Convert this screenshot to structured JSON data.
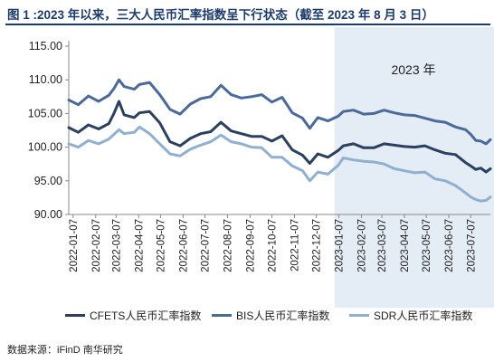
{
  "header": {
    "title": "图 1 :2023 年以来，三大人民币汇率指数呈下行状态（截至 2023 年 8 月 3 日）"
  },
  "footer": {
    "source": "数据来源：iFinD  南华研究"
  },
  "colors": {
    "cfets": "#2b3f5f",
    "bis": "#4a6a9a",
    "sdr": "#8fb0d0",
    "highlight": "#e4ecf6",
    "title": "#1c3a6b"
  },
  "chart_data": {
    "type": "line",
    "title": "",
    "xlabel": "",
    "ylabel": "",
    "ylim": [
      90,
      115
    ],
    "yticks": [
      "90.00",
      "95.00",
      "100.00",
      "105.00",
      "110.00",
      "115.00"
    ],
    "xticks": [
      "2022-01-07",
      "2022-02-07",
      "2022-03-07",
      "2022-04-07",
      "2022-05-07",
      "2022-06-07",
      "2022-07-07",
      "2022-08-07",
      "2022-09-07",
      "2022-10-07",
      "2022-11-07",
      "2022-12-07",
      "2023-01-07",
      "2023-02-07",
      "2023-03-07",
      "2023-04-07",
      "2023-05-07",
      "2023-06-07",
      "2023-07-07"
    ],
    "x_range": [
      "2022-01-01",
      "2023-08-03"
    ],
    "legend_position": "bottom",
    "grid": false,
    "annotation": {
      "text": "2023 年",
      "shaded_from": "2023-01-01",
      "shaded_to": "2023-08-03"
    },
    "series": [
      {
        "name": "CFETS人民币汇率指数",
        "color": "#2b3f5f",
        "points": [
          [
            "2022-01-01",
            102.9
          ],
          [
            "2022-01-14",
            102.2
          ],
          [
            "2022-01-28",
            103.3
          ],
          [
            "2022-02-11",
            102.7
          ],
          [
            "2022-02-25",
            103.5
          ],
          [
            "2022-03-04",
            105.0
          ],
          [
            "2022-03-11",
            106.8
          ],
          [
            "2022-03-18",
            104.8
          ],
          [
            "2022-04-01",
            104.4
          ],
          [
            "2022-04-08",
            105.1
          ],
          [
            "2022-04-22",
            105.3
          ],
          [
            "2022-05-06",
            103.6
          ],
          [
            "2022-05-20",
            100.8
          ],
          [
            "2022-06-03",
            100.2
          ],
          [
            "2022-06-17",
            101.3
          ],
          [
            "2022-07-01",
            102.0
          ],
          [
            "2022-07-15",
            102.3
          ],
          [
            "2022-07-29",
            103.7
          ],
          [
            "2022-08-12",
            102.4
          ],
          [
            "2022-08-26",
            102.0
          ],
          [
            "2022-09-09",
            101.6
          ],
          [
            "2022-09-23",
            101.6
          ],
          [
            "2022-10-07",
            100.9
          ],
          [
            "2022-10-21",
            101.7
          ],
          [
            "2022-11-04",
            99.6
          ],
          [
            "2022-11-18",
            98.8
          ],
          [
            "2022-11-28",
            97.6
          ],
          [
            "2022-12-09",
            99.0
          ],
          [
            "2022-12-23",
            98.5
          ],
          [
            "2023-01-06",
            99.5
          ],
          [
            "2023-01-13",
            100.2
          ],
          [
            "2023-01-27",
            100.5
          ],
          [
            "2023-02-10",
            99.9
          ],
          [
            "2023-02-24",
            99.9
          ],
          [
            "2023-03-10",
            100.5
          ],
          [
            "2023-03-24",
            100.3
          ],
          [
            "2023-04-07",
            100.1
          ],
          [
            "2023-04-21",
            100.0
          ],
          [
            "2023-05-05",
            100.2
          ],
          [
            "2023-05-19",
            99.6
          ],
          [
            "2023-06-02",
            99.1
          ],
          [
            "2023-06-16",
            98.9
          ],
          [
            "2023-06-30",
            97.7
          ],
          [
            "2023-07-07",
            97.2
          ],
          [
            "2023-07-14",
            96.7
          ],
          [
            "2023-07-21",
            96.9
          ],
          [
            "2023-07-28",
            96.3
          ],
          [
            "2023-08-03",
            96.8
          ]
        ]
      },
      {
        "name": "BIS人民币汇率指数",
        "color": "#4a6a9a",
        "points": [
          [
            "2022-01-01",
            107.0
          ],
          [
            "2022-01-14",
            106.3
          ],
          [
            "2022-01-28",
            107.6
          ],
          [
            "2022-02-11",
            106.8
          ],
          [
            "2022-02-25",
            107.7
          ],
          [
            "2022-03-04",
            108.7
          ],
          [
            "2022-03-11",
            110.0
          ],
          [
            "2022-03-18",
            109.0
          ],
          [
            "2022-04-01",
            108.6
          ],
          [
            "2022-04-08",
            109.3
          ],
          [
            "2022-04-22",
            109.6
          ],
          [
            "2022-05-06",
            107.8
          ],
          [
            "2022-05-20",
            105.6
          ],
          [
            "2022-06-03",
            104.9
          ],
          [
            "2022-06-17",
            106.4
          ],
          [
            "2022-07-01",
            107.2
          ],
          [
            "2022-07-15",
            107.5
          ],
          [
            "2022-07-29",
            109.2
          ],
          [
            "2022-08-12",
            107.8
          ],
          [
            "2022-08-26",
            107.3
          ],
          [
            "2022-09-09",
            107.5
          ],
          [
            "2022-09-23",
            107.8
          ],
          [
            "2022-10-07",
            106.7
          ],
          [
            "2022-10-21",
            107.4
          ],
          [
            "2022-11-04",
            105.1
          ],
          [
            "2022-11-18",
            104.3
          ],
          [
            "2022-11-28",
            102.8
          ],
          [
            "2022-12-09",
            104.4
          ],
          [
            "2022-12-23",
            103.9
          ],
          [
            "2023-01-06",
            104.6
          ],
          [
            "2023-01-13",
            105.3
          ],
          [
            "2023-01-27",
            105.5
          ],
          [
            "2023-02-10",
            104.9
          ],
          [
            "2023-02-24",
            105.0
          ],
          [
            "2023-03-10",
            105.5
          ],
          [
            "2023-03-24",
            105.1
          ],
          [
            "2023-04-07",
            104.8
          ],
          [
            "2023-04-21",
            104.7
          ],
          [
            "2023-05-05",
            104.3
          ],
          [
            "2023-05-19",
            103.9
          ],
          [
            "2023-06-02",
            103.7
          ],
          [
            "2023-06-16",
            103.0
          ],
          [
            "2023-06-30",
            102.6
          ],
          [
            "2023-07-07",
            101.9
          ],
          [
            "2023-07-14",
            101.0
          ],
          [
            "2023-07-21",
            100.9
          ],
          [
            "2023-07-28",
            100.5
          ],
          [
            "2023-08-03",
            101.1
          ]
        ]
      },
      {
        "name": "SDR人民币汇率指数",
        "color": "#8fb0d0",
        "points": [
          [
            "2022-01-01",
            100.5
          ],
          [
            "2022-01-14",
            100.0
          ],
          [
            "2022-01-28",
            101.0
          ],
          [
            "2022-02-11",
            100.5
          ],
          [
            "2022-02-25",
            101.2
          ],
          [
            "2022-03-04",
            101.9
          ],
          [
            "2022-03-11",
            102.6
          ],
          [
            "2022-03-18",
            102.0
          ],
          [
            "2022-04-01",
            102.2
          ],
          [
            "2022-04-08",
            103.0
          ],
          [
            "2022-04-22",
            102.0
          ],
          [
            "2022-05-06",
            100.5
          ],
          [
            "2022-05-20",
            99.0
          ],
          [
            "2022-06-03",
            98.7
          ],
          [
            "2022-06-17",
            99.7
          ],
          [
            "2022-07-01",
            100.3
          ],
          [
            "2022-07-15",
            100.8
          ],
          [
            "2022-07-29",
            101.8
          ],
          [
            "2022-08-12",
            100.8
          ],
          [
            "2022-08-26",
            100.5
          ],
          [
            "2022-09-09",
            100.0
          ],
          [
            "2022-09-23",
            99.9
          ],
          [
            "2022-10-07",
            98.5
          ],
          [
            "2022-10-21",
            98.5
          ],
          [
            "2022-11-04",
            97.2
          ],
          [
            "2022-11-18",
            96.5
          ],
          [
            "2022-11-28",
            95.0
          ],
          [
            "2022-12-09",
            96.3
          ],
          [
            "2022-12-23",
            96.0
          ],
          [
            "2023-01-06",
            97.3
          ],
          [
            "2023-01-13",
            98.4
          ],
          [
            "2023-01-27",
            98.1
          ],
          [
            "2023-02-10",
            97.9
          ],
          [
            "2023-02-24",
            97.8
          ],
          [
            "2023-03-10",
            97.5
          ],
          [
            "2023-03-24",
            96.8
          ],
          [
            "2023-04-07",
            96.5
          ],
          [
            "2023-04-21",
            96.2
          ],
          [
            "2023-05-05",
            96.3
          ],
          [
            "2023-05-19",
            95.3
          ],
          [
            "2023-06-02",
            95.0
          ],
          [
            "2023-06-16",
            94.3
          ],
          [
            "2023-06-30",
            93.2
          ],
          [
            "2023-07-07",
            92.6
          ],
          [
            "2023-07-14",
            92.2
          ],
          [
            "2023-07-21",
            92.0
          ],
          [
            "2023-07-28",
            92.1
          ],
          [
            "2023-08-03",
            92.6
          ]
        ]
      }
    ]
  }
}
